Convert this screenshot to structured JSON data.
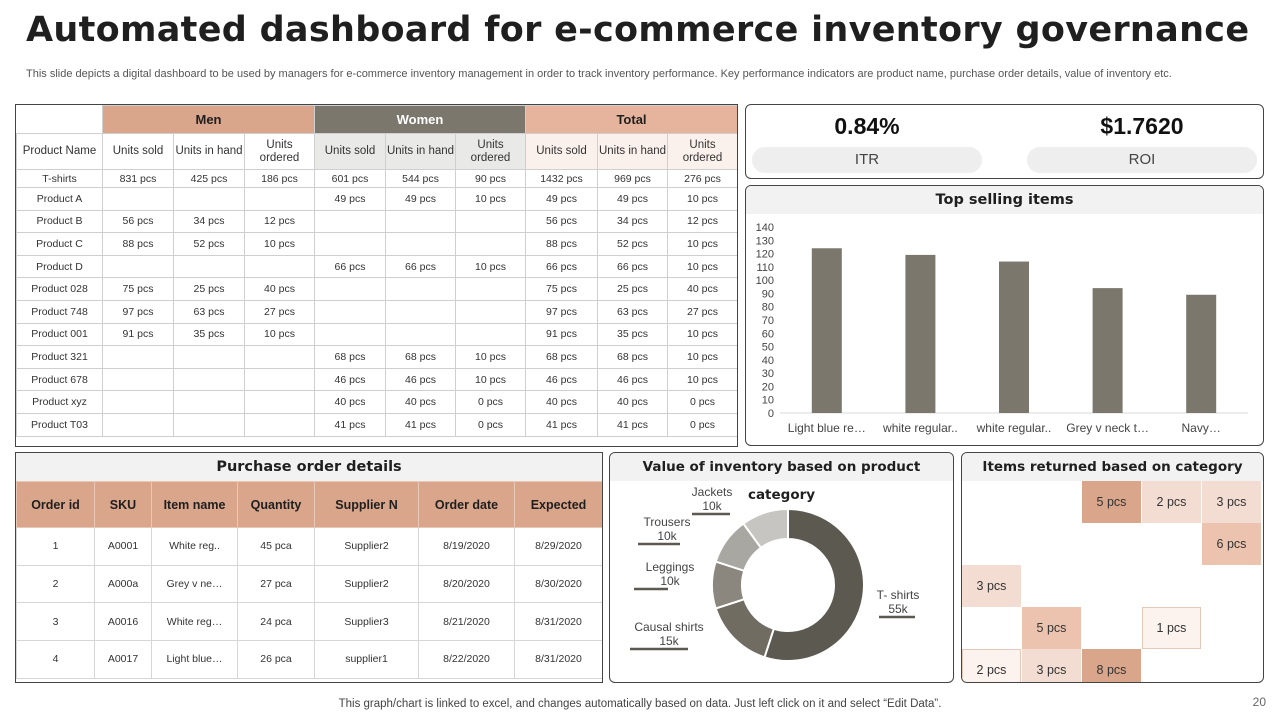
{
  "title": "Automated dashboard for e-commerce inventory governance",
  "subtitle": "This slide depicts a digital dashboard to be used by managers for e-commerce inventory management in order to track inventory performance. Key performance indicators are product name, purchase order details, value of inventory etc.",
  "footer": "This graph/chart is linked to excel, and changes automatically based on data. Just left click on it and select “Edit Data”.",
  "page_number": "20",
  "colors": {
    "accent": "#d9a58b",
    "dark": "#7b776c",
    "light_accent": "#f3ddd2"
  },
  "inventory": {
    "groups": [
      "Men",
      "Women",
      "Total"
    ],
    "product_header": "Product Name",
    "sub_headers": [
      "Units sold",
      "Units in hand",
      "Units ordered"
    ],
    "rows": [
      [
        "T-shirts",
        "831 pcs",
        "425 pcs",
        "186 pcs",
        "601 pcs",
        "544 pcs",
        "90 pcs",
        "1432 pcs",
        "969 pcs",
        "276 pcs"
      ],
      [
        "Product A",
        "",
        "",
        "",
        "49 pcs",
        "49 pcs",
        "10 pcs",
        "49 pcs",
        "49 pcs",
        "10 pcs"
      ],
      [
        "Product B",
        "56 pcs",
        "34 pcs",
        "12 pcs",
        "",
        "",
        "",
        "56 pcs",
        "34 pcs",
        "12 pcs"
      ],
      [
        "Product C",
        "88 pcs",
        "52 pcs",
        "10 pcs",
        "",
        "",
        "",
        "88 pcs",
        "52 pcs",
        "10 pcs"
      ],
      [
        "Product D",
        "",
        "",
        "",
        "66 pcs",
        "66 pcs",
        "10 pcs",
        "66 pcs",
        "66 pcs",
        "10 pcs"
      ],
      [
        "Product 028",
        "75 pcs",
        "25 pcs",
        "40 pcs",
        "",
        "",
        "",
        "75 pcs",
        "25 pcs",
        "40 pcs"
      ],
      [
        "Product 748",
        "97 pcs",
        "63 pcs",
        "27 pcs",
        "",
        "",
        "",
        "97 pcs",
        "63 pcs",
        "27 pcs"
      ],
      [
        "Product 001",
        "91 pcs",
        "35 pcs",
        "10 pcs",
        "",
        "",
        "",
        "91 pcs",
        "35 pcs",
        "10 pcs"
      ],
      [
        "Product 321",
        "",
        "",
        "",
        "68 pcs",
        "68 pcs",
        "10 pcs",
        "68 pcs",
        "68 pcs",
        "10 pcs"
      ],
      [
        "Product 678",
        "",
        "",
        "",
        "46 pcs",
        "46 pcs",
        "10 pcs",
        "46 pcs",
        "46 pcs",
        "10 pcs"
      ],
      [
        "Product xyz",
        "",
        "",
        "",
        "40 pcs",
        "40 pcs",
        "0 pcs",
        "40 pcs",
        "40 pcs",
        "0 pcs"
      ],
      [
        "Product T03",
        "",
        "",
        "",
        "41 pcs",
        "41 pcs",
        "0 pcs",
        "41 pcs",
        "41 pcs",
        "0 pcs"
      ]
    ]
  },
  "kpis": [
    {
      "value": "0.84%",
      "label": "ITR"
    },
    {
      "value": "$1.7620",
      "label": "ROI"
    }
  ],
  "top_selling": {
    "title": "Top selling items"
  },
  "purchase_orders": {
    "title": "Purchase order details",
    "headers": [
      "Order id",
      "SKU",
      "Item name",
      "Quantity",
      "Supplier N",
      "Order date",
      "Expected"
    ],
    "rows": [
      [
        "1",
        "A0001",
        "White reg..",
        "45 pca",
        "Supplier2",
        "8/19/2020",
        "8/29/2020"
      ],
      [
        "2",
        "A000a",
        "Grey v ne…",
        "27 pca",
        "Supplier2",
        "8/20/2020",
        "8/30/2020"
      ],
      [
        "3",
        "A0016",
        "White reg…",
        "24 pca",
        "Supplier3",
        "8/21/2020",
        "8/31/2020"
      ],
      [
        "4",
        "A0017",
        "Light blue…",
        "26 pca",
        "supplier1",
        "8/22/2020",
        "8/31/2020"
      ]
    ]
  },
  "inventory_value": {
    "title": "Value of inventory based on product category"
  },
  "returns": {
    "title": "Items returned based on category",
    "cells": [
      {
        "row": 0,
        "col": 2,
        "label": "5 pcs",
        "shade": "c1"
      },
      {
        "row": 0,
        "col": 3,
        "label": "2 pcs",
        "shade": "c2"
      },
      {
        "row": 0,
        "col": 4,
        "label": "3 pcs",
        "shade": "c2"
      },
      {
        "row": 1,
        "col": 4,
        "label": "6 pcs",
        "shade": "c3"
      },
      {
        "row": 2,
        "col": 0,
        "label": "3 pcs",
        "shade": "c2"
      },
      {
        "row": 3,
        "col": 1,
        "label": "5 pcs",
        "shade": "c3"
      },
      {
        "row": 3,
        "col": 3,
        "label": "1 pcs",
        "shade": "c4"
      },
      {
        "row": 4,
        "col": 0,
        "label": "2 pcs",
        "shade": "c4"
      },
      {
        "row": 4,
        "col": 1,
        "label": "3 pcs",
        "shade": "c2"
      },
      {
        "row": 4,
        "col": 2,
        "label": "8 pcs",
        "shade": "c1"
      }
    ]
  },
  "chart_data": [
    {
      "type": "bar",
      "title": "Top selling items",
      "categories": [
        "Light blue re…",
        "white regular..",
        "white regular..",
        "Grey v neck t…",
        "Navy…"
      ],
      "values": [
        124,
        119,
        114,
        94,
        89
      ],
      "ylim": [
        0,
        140
      ],
      "yticks": [
        0,
        10,
        20,
        30,
        40,
        50,
        60,
        70,
        80,
        90,
        100,
        110,
        120,
        130,
        140
      ],
      "bar_color": "#7b776c",
      "grid": false
    },
    {
      "type": "pie",
      "title": "Value of inventory based on product category",
      "labels": [
        "T- shirts",
        "Causal shirts",
        "Leggings",
        "Trousers",
        "Jackets"
      ],
      "values": [
        55,
        15,
        10,
        10,
        10
      ],
      "value_labels": [
        "55k",
        "15k",
        "10k",
        "10k",
        "10k"
      ],
      "colors": [
        "#5c5950",
        "#706c62",
        "#8b877e",
        "#a9a7a1",
        "#c6c5c1"
      ],
      "donut": true
    }
  ]
}
